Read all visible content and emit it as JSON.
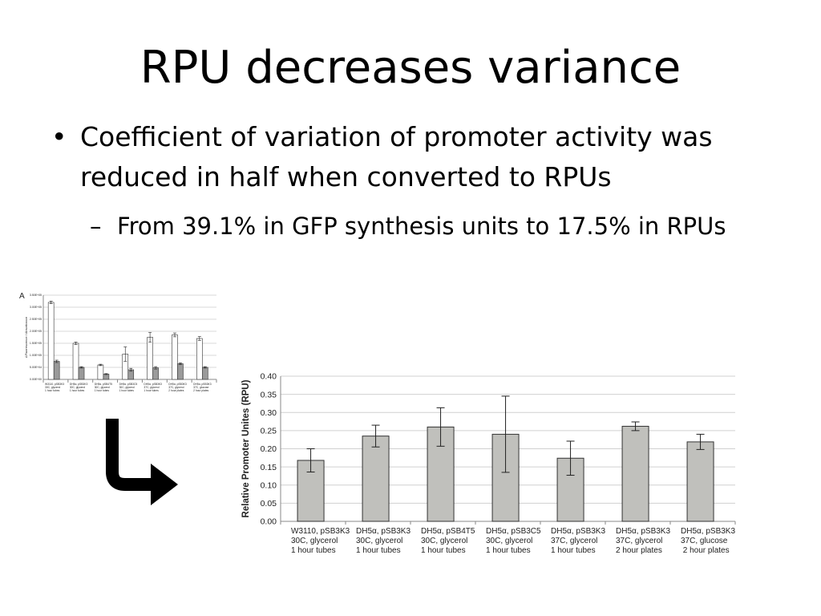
{
  "slide": {
    "title": "RPU decreases variance",
    "bullet_symbol": "•",
    "bullet": "Coefficient of variation of promoter activity was reduced in half when converted to RPUs",
    "sub_bullet_symbol": "–",
    "sub_bullet": "From 39.1% in GFP synthesis units to 17.5% in RPUs"
  },
  "arrow": {
    "icon": "bent-down-right-arrow-icon",
    "color": "#000000"
  },
  "chart_data": [
    {
      "type": "bar",
      "panel_label": "A",
      "ylabel": "ΔFluorescence / Absorbance",
      "ylim": [
        0,
        3.5
      ],
      "y_ticks": [
        "3.50E+05",
        "3.00E+05",
        "2.50E+05",
        "2.00E+05",
        "1.50E+05",
        "1.00E+05",
        "5.00E+04",
        "0.00E+00"
      ],
      "categories": [
        [
          "W3110, pSB3K3",
          "30C, glycerol",
          "1 hour tubes"
        ],
        [
          "DH5α, pSB3K3",
          "30C, glycerol",
          "1 hour tubes"
        ],
        [
          "DH5α, pSB4T5",
          "30C, glycerol",
          "1 hour tubes"
        ],
        [
          "DH5α, pSB3C5",
          "30C, glycerol",
          "1 hour tubes"
        ],
        [
          "DH5α, pSB3K3",
          "37C, glycerol",
          "1 hour tubes"
        ],
        [
          "DH5α, pSB3K3",
          "37C, glycerol",
          "2 hour plates"
        ],
        [
          "DH5α, pSB3K3",
          "37C, glucose",
          "2 hour plates"
        ]
      ],
      "series": [
        {
          "values": [
            3.2,
            1.5,
            0.6,
            1.05,
            1.75,
            1.85,
            1.7
          ],
          "errors": [
            0.05,
            0.05,
            0.03,
            0.3,
            0.2,
            0.08,
            0.08
          ],
          "color": "#ffffff"
        },
        {
          "values": [
            0.75,
            0.5,
            0.22,
            0.4,
            0.48,
            0.65,
            0.5
          ],
          "errors": [
            0.05,
            0.03,
            0.02,
            0.06,
            0.05,
            0.04,
            0.03
          ],
          "color": "#9a9a9a"
        }
      ]
    },
    {
      "type": "bar",
      "ylabel": "Relative Promoter Unites (RPU)",
      "ylim": [
        0,
        0.4
      ],
      "y_ticks": [
        "0.40",
        "0.35",
        "0.30",
        "0.25",
        "0.20",
        "0.15",
        "0.10",
        "0.05",
        "0.00"
      ],
      "grid": true,
      "categories": [
        [
          "W3110, pSB3K3",
          "30C, glycerol",
          "1 hour tubes"
        ],
        [
          "DH5α, pSB3K3",
          "30C, glycerol",
          "1 hour tubes"
        ],
        [
          "DH5α, pSB4T5",
          "30C, glycerol",
          "1 hour tubes"
        ],
        [
          "DH5α, pSB3C5",
          "30C, glycerol",
          "1 hour tubes"
        ],
        [
          "DH5α, pSB3K3",
          "37C, glycerol",
          "1 hour tubes"
        ],
        [
          "DH5α, pSB3K3",
          "37C, glycerol",
          "2 hour plates"
        ],
        [
          "DH5α, pSB3K3",
          "37C, glucose",
          " 2 hour plates"
        ]
      ],
      "series": [
        {
          "values": [
            0.168,
            0.235,
            0.26,
            0.24,
            0.174,
            0.262,
            0.219
          ],
          "errors": [
            0.032,
            0.03,
            0.053,
            0.105,
            0.047,
            0.012,
            0.021
          ],
          "color": "#c0c0bc"
        }
      ]
    }
  ]
}
